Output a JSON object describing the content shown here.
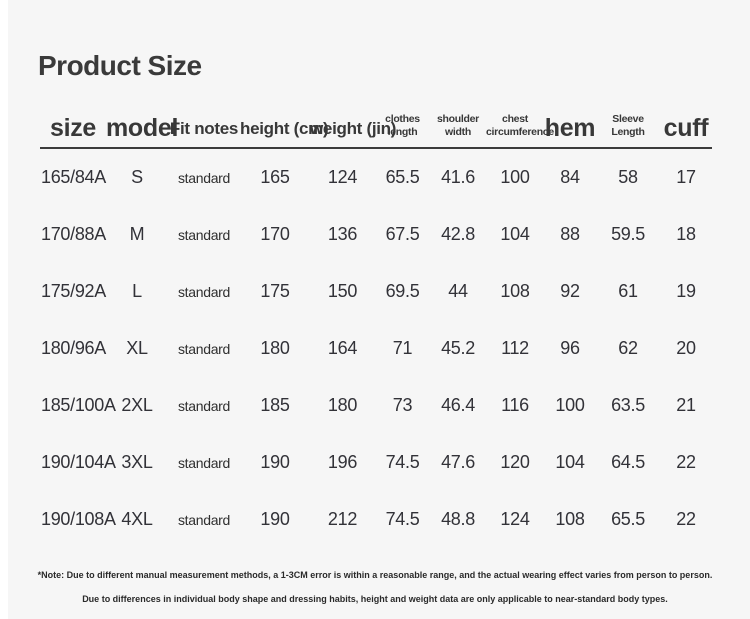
{
  "page": {
    "title": "Product Size"
  },
  "theme": {
    "background": "#f6f6f6",
    "edge_strip": "#ffffff",
    "text": "#333333",
    "rule": "#3c3c3c"
  },
  "table": {
    "columns": [
      {
        "key": "size",
        "label": "size",
        "style": "large"
      },
      {
        "key": "model",
        "label": "model",
        "style": "large"
      },
      {
        "key": "fit",
        "label": "Fit notes",
        "style": "medium"
      },
      {
        "key": "height",
        "label": "height (cm)",
        "style": "medium"
      },
      {
        "key": "weight",
        "label": "weight (jin)",
        "style": "medium"
      },
      {
        "key": "clothes-length",
        "label": "clothes length",
        "style": "small"
      },
      {
        "key": "shoulder-width",
        "label": "shoulder width",
        "style": "small"
      },
      {
        "key": "chest-circumference",
        "label": "chest circumference",
        "style": "small"
      },
      {
        "key": "hem",
        "label": "hem",
        "style": "large"
      },
      {
        "key": "sleeve-length",
        "label": "Sleeve Length",
        "style": "small"
      },
      {
        "key": "cuff",
        "label": "cuff",
        "style": "large"
      }
    ],
    "rows": [
      [
        "165/84A",
        "S",
        "standard",
        "165",
        "124",
        "65.5",
        "41.6",
        "100",
        "84",
        "58",
        "17"
      ],
      [
        "170/88A",
        "M",
        "standard",
        "170",
        "136",
        "67.5",
        "42.8",
        "104",
        "88",
        "59.5",
        "18"
      ],
      [
        "175/92A",
        "L",
        "standard",
        "175",
        "150",
        "69.5",
        "44",
        "108",
        "92",
        "61",
        "19"
      ],
      [
        "180/96A",
        "XL",
        "standard",
        "180",
        "164",
        "71",
        "45.2",
        "112",
        "96",
        "62",
        "20"
      ],
      [
        "185/100A",
        "2XL",
        "standard",
        "185",
        "180",
        "73",
        "46.4",
        "116",
        "100",
        "63.5",
        "21"
      ],
      [
        "190/104A",
        "3XL",
        "standard",
        "190",
        "196",
        "74.5",
        "47.6",
        "120",
        "104",
        "64.5",
        "22"
      ],
      [
        "190/108A",
        "4XL",
        "standard",
        "190",
        "212",
        "74.5",
        "48.8",
        "124",
        "108",
        "65.5",
        "22"
      ]
    ]
  },
  "notes": {
    "line1": "*Note: Due to different manual measurement methods, a 1-3CM error is within a reasonable range, and the actual wearing effect varies from person to person.",
    "line2": "Due to differences in individual body shape and dressing habits, height and weight data are only applicable to near-standard body types."
  }
}
